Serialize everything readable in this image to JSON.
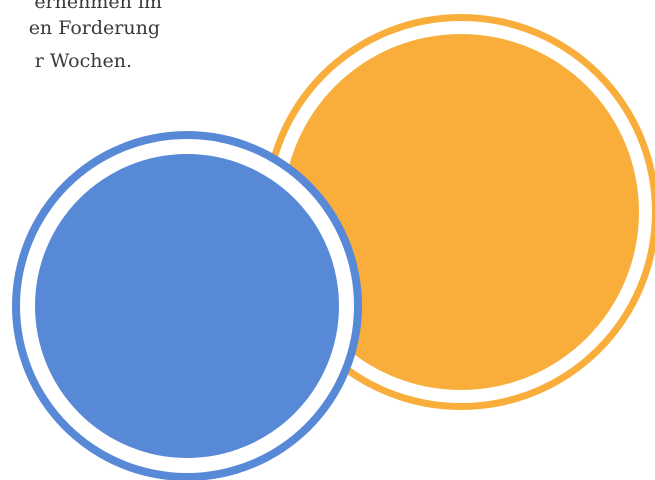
{
  "text_fragment": {
    "lines": [
      "ernehmen im",
      "en Forderung",
      "r Wochen."
    ]
  },
  "colors": {
    "background": "#ffffff",
    "orange": "#f9ae3c",
    "blue": "#5789d7",
    "ring_gap": "#ffffff",
    "text": "#3a3a3a"
  },
  "shapes": [
    {
      "name": "orange-circle"
    },
    {
      "name": "blue-circle"
    }
  ]
}
